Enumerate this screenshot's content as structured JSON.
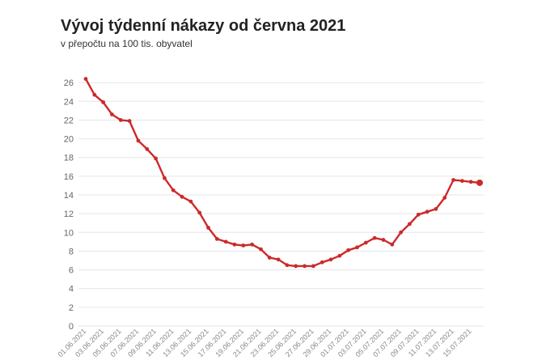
{
  "chart_data": {
    "type": "line",
    "title": "Vývoj týdenní nákazy od června 2021",
    "subtitle": "v přepočtu na 100 tis. obyvatel",
    "xlabel": "",
    "ylabel": "",
    "ylim": [
      0,
      28
    ],
    "y_ticks": [
      0,
      2,
      4,
      6,
      8,
      10,
      12,
      14,
      16,
      18,
      20,
      22,
      24,
      26
    ],
    "grid": true,
    "x": [
      "01.06.2021",
      "02.06.2021",
      "03.06.2021",
      "04.06.2021",
      "05.06.2021",
      "06.06.2021",
      "07.06.2021",
      "08.06.2021",
      "09.06.2021",
      "10.06.2021",
      "11.06.2021",
      "12.06.2021",
      "13.06.2021",
      "14.06.2021",
      "15.06.2021",
      "16.06.2021",
      "17.06.2021",
      "18.06.2021",
      "19.06.2021",
      "20.06.2021",
      "21.06.2021",
      "22.06.2021",
      "23.06.2021",
      "24.06.2021",
      "25.06.2021",
      "26.06.2021",
      "27.06.2021",
      "28.06.2021",
      "29.06.2021",
      "30.06.2021",
      "01.07.2021",
      "02.07.2021",
      "03.07.2021",
      "04.07.2021",
      "05.07.2021",
      "06.07.2021",
      "07.07.2021",
      "08.07.2021",
      "09.07.2021",
      "10.07.2021",
      "11.07.2021",
      "12.07.2021",
      "13.07.2021",
      "14.07.2021",
      "15.07.2021",
      "16.07.2021"
    ],
    "x_tick_labels": [
      "01.06.2021",
      "03.06.2021",
      "05.06.2021",
      "07.06.2021",
      "09.06.2021",
      "11.06.2021",
      "13.06.2021",
      "15.06.2021",
      "17.06.2021",
      "19.06.2021",
      "21.06.2021",
      "23.06.2021",
      "25.06.2021",
      "27.06.2021",
      "29.06.2021",
      "01.07.2021",
      "03.07.2021",
      "05.07.2021",
      "07.07.2021",
      "09.07.2021",
      "11.07.2021",
      "13.07.2021",
      "15.07.2021"
    ],
    "series": [
      {
        "color": "#cc2a2a",
        "values": [
          26.4,
          24.7,
          23.9,
          22.6,
          22.0,
          21.9,
          19.8,
          18.9,
          17.9,
          15.8,
          14.5,
          13.8,
          13.3,
          12.1,
          10.5,
          9.3,
          9.0,
          8.7,
          8.6,
          8.7,
          8.2,
          7.3,
          7.1,
          6.5,
          6.4,
          6.4,
          6.4,
          6.8,
          7.1,
          7.5,
          8.1,
          8.4,
          8.9,
          9.4,
          9.2,
          8.7,
          10.0,
          10.9,
          11.9,
          12.2,
          12.5,
          13.7,
          15.6,
          15.5,
          15.4,
          15.3
        ]
      }
    ]
  }
}
